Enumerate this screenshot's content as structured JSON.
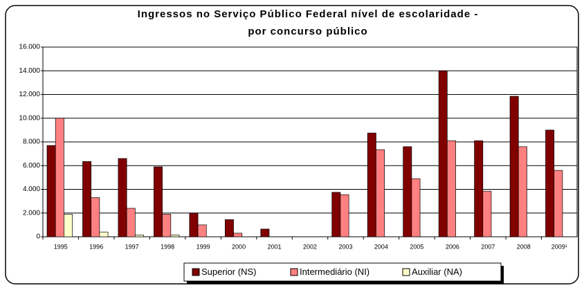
{
  "chart_data": {
    "type": "bar",
    "title": [
      "Ingressos no Serviço Público Federal nível de escolaridade -",
      "por concurso público"
    ],
    "categories": [
      "1995",
      "1996",
      "1997",
      "1998",
      "1999",
      "2000",
      "2001",
      "2002",
      "2003",
      "2004",
      "2005",
      "2006",
      "2007",
      "2008",
      "2009¹"
    ],
    "series": [
      {
        "name": "Superior (NS)",
        "color": "#800000",
        "values": [
          7700,
          6350,
          6600,
          5900,
          2000,
          1450,
          650,
          0,
          3750,
          8750,
          7600,
          14000,
          8100,
          11850,
          9000
        ]
      },
      {
        "name": "Intermediário (NI)",
        "color": "#ff8080",
        "values": [
          10000,
          3300,
          2400,
          1900,
          1000,
          300,
          0,
          0,
          3550,
          7350,
          4900,
          8100,
          3850,
          7600,
          5600
        ]
      },
      {
        "name": "Auxiliar (NA)",
        "color": "#ffffcc",
        "values": [
          1900,
          400,
          150,
          150,
          0,
          0,
          0,
          0,
          0,
          0,
          0,
          0,
          0,
          0,
          0
        ]
      }
    ],
    "ylim": [
      0,
      16000
    ],
    "yticks": [
      0,
      {
        "value": 2000,
        "label": "2.000"
      },
      {
        "value": 4000,
        "label": "4.000"
      },
      {
        "value": 6000,
        "label": "6.000"
      },
      {
        "value": 8000,
        "label": "8.000"
      },
      {
        "value": 10000,
        "label": "10.000"
      },
      {
        "value": 12000,
        "label": "12.000"
      },
      {
        "value": 14000,
        "label": "14.000"
      },
      {
        "value": 16000,
        "label": "16.000"
      }
    ],
    "grid": true,
    "legend": "bottom"
  }
}
